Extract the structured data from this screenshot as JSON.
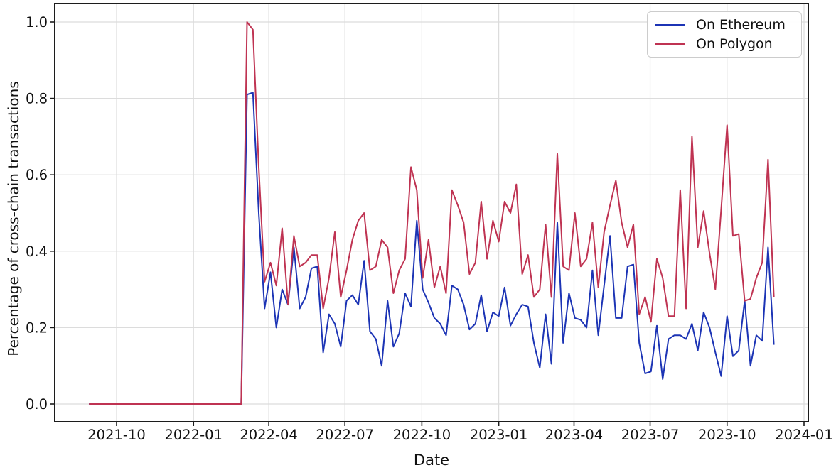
{
  "chart_data": {
    "type": "line",
    "title": "",
    "xlabel": "Date",
    "ylabel": "Percentage of cross-chain transactions",
    "grid": true,
    "legend_position": "upper right",
    "ylim": [
      -0.046,
      1.048
    ],
    "y_ticks": [
      0.0,
      0.2,
      0.4,
      0.6,
      0.8,
      1.0
    ],
    "y_tick_labels": [
      "0.0",
      "0.2",
      "0.4",
      "0.6",
      "0.8",
      "1.0"
    ],
    "x_tick_labels": [
      "2021-10",
      "2022-01",
      "2022-04",
      "2022-07",
      "2022-10",
      "2023-01",
      "2023-04",
      "2023-07",
      "2023-10",
      "2024-01"
    ],
    "x_tick_dates": [
      "2021-10-01",
      "2022-01-01",
      "2022-04-01",
      "2022-07-01",
      "2022-10-01",
      "2023-01-01",
      "2023-04-01",
      "2023-07-01",
      "2023-10-01",
      "2024-01-01"
    ],
    "x_start_date": "2021-08-29",
    "x_interval_days": 7,
    "series": [
      {
        "name": "On Ethereum",
        "color": "#1c34b5",
        "values": [
          0,
          0,
          0,
          0,
          0,
          0,
          0,
          0,
          0,
          0,
          0,
          0,
          0,
          0,
          0,
          0,
          0,
          0,
          0,
          0,
          0,
          0,
          0,
          0,
          0,
          0,
          0,
          0.81,
          0.815,
          0.5,
          0.25,
          0.345,
          0.2,
          0.3,
          0.26,
          0.41,
          0.25,
          0.28,
          0.355,
          0.36,
          0.135,
          0.235,
          0.21,
          0.15,
          0.27,
          0.285,
          0.26,
          0.375,
          0.19,
          0.17,
          0.1,
          0.27,
          0.15,
          0.185,
          0.29,
          0.255,
          0.48,
          0.3,
          0.265,
          0.225,
          0.21,
          0.18,
          0.31,
          0.3,
          0.26,
          0.195,
          0.21,
          0.285,
          0.19,
          0.24,
          0.23,
          0.305,
          0.205,
          0.235,
          0.26,
          0.255,
          0.16,
          0.095,
          0.235,
          0.105,
          0.475,
          0.16,
          0.29,
          0.225,
          0.22,
          0.2,
          0.35,
          0.18,
          0.31,
          0.44,
          0.225,
          0.225,
          0.36,
          0.365,
          0.16,
          0.08,
          0.085,
          0.205,
          0.065,
          0.17,
          0.18,
          0.18,
          0.17,
          0.21,
          0.14,
          0.24,
          0.2,
          0.135,
          0.073,
          0.23,
          0.125,
          0.14,
          0.27,
          0.1,
          0.18,
          0.165,
          0.41,
          0.155
        ]
      },
      {
        "name": "On Polygon",
        "color": "#bf3352",
        "values": [
          0,
          0,
          0,
          0,
          0,
          0,
          0,
          0,
          0,
          0,
          0,
          0,
          0,
          0,
          0,
          0,
          0,
          0,
          0,
          0,
          0,
          0,
          0,
          0,
          0,
          0,
          0,
          1.0,
          0.98,
          0.62,
          0.32,
          0.37,
          0.31,
          0.46,
          0.26,
          0.44,
          0.36,
          0.37,
          0.39,
          0.39,
          0.25,
          0.33,
          0.45,
          0.28,
          0.35,
          0.43,
          0.48,
          0.5,
          0.35,
          0.36,
          0.43,
          0.41,
          0.29,
          0.35,
          0.38,
          0.62,
          0.56,
          0.33,
          0.43,
          0.305,
          0.36,
          0.29,
          0.56,
          0.52,
          0.475,
          0.34,
          0.37,
          0.53,
          0.38,
          0.48,
          0.425,
          0.53,
          0.5,
          0.575,
          0.34,
          0.39,
          0.28,
          0.3,
          0.47,
          0.28,
          0.655,
          0.36,
          0.35,
          0.5,
          0.36,
          0.38,
          0.475,
          0.305,
          0.45,
          0.52,
          0.585,
          0.475,
          0.41,
          0.47,
          0.235,
          0.28,
          0.215,
          0.38,
          0.33,
          0.23,
          0.23,
          0.56,
          0.25,
          0.7,
          0.41,
          0.505,
          0.395,
          0.3,
          0.51,
          0.73,
          0.44,
          0.445,
          0.27,
          0.275,
          0.33,
          0.37,
          0.64,
          0.28
        ]
      }
    ],
    "style": {
      "grid_color": "#dcdcdc",
      "spine_color": "#1c1c1c",
      "tick_color": "#1c1c1c",
      "text_color": "#111111",
      "background": "#ffffff"
    }
  }
}
